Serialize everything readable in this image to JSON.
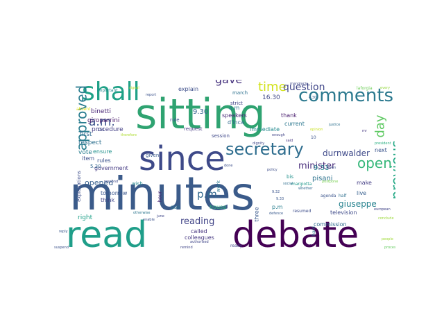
{
  "words": [
    {
      "text": "minutes",
      "color": "#3b5b8a"
    },
    {
      "text": "sitting",
      "color": "#2fa371"
    },
    {
      "text": "read",
      "color": "#1f9e89"
    },
    {
      "text": "debate",
      "color": "#440154"
    },
    {
      "text": "since",
      "color": "#3e4a89"
    },
    {
      "text": "shall",
      "color": "#1fa187"
    },
    {
      "text": "comments",
      "color": "#2a788e"
    },
    {
      "text": "secretary",
      "color": "#2e6d8e"
    },
    {
      "text": "approved",
      "color": "#287c8e"
    },
    {
      "text": "previous",
      "color": "#22a884"
    },
    {
      "text": "open",
      "color": "#35b779"
    },
    {
      "text": "time",
      "color": "#d2e21b"
    },
    {
      "text": "gave",
      "color": "#46327e"
    },
    {
      "text": "a.m.",
      "color": "#3b528b"
    },
    {
      "text": "question",
      "color": "#404688"
    },
    {
      "text": "day",
      "color": "#5ec962"
    },
    {
      "text": "p.m.",
      "color": "#31688e"
    },
    {
      "text": "minister",
      "color": "#472c7a"
    },
    {
      "text": "reading",
      "color": "#414487"
    },
    {
      "text": "durnwalder",
      "color": "#3e4989"
    },
    {
      "text": "opened",
      "color": "#355f8d"
    },
    {
      "text": "giuseppe",
      "color": "#26828e"
    },
    {
      "text": "pisani",
      "color": "#2c728e"
    },
    {
      "text": "9.31",
      "color": "#277f8e"
    },
    {
      "text": "9.30",
      "color": "#33638d"
    },
    {
      "text": "16.30",
      "color": "#3f4788"
    },
    {
      "text": "binetti",
      "color": "#482576"
    },
    {
      "text": "giroparrini",
      "color": "#48186a"
    },
    {
      "text": "procedure",
      "color": "#433e85"
    },
    {
      "text": "first",
      "color": "#31688e"
    },
    {
      "text": "respect",
      "color": "#2d708e"
    },
    {
      "text": "vote",
      "color": "#287d8e"
    },
    {
      "text": "ensure",
      "color": "#20928c"
    },
    {
      "text": "rules",
      "color": "#3b528b"
    },
    {
      "text": "right",
      "color": "#1fa088"
    },
    {
      "text": "called",
      "color": "#46337f"
    },
    {
      "text": "colleagues",
      "color": "#453781"
    },
    {
      "text": "tomorrow",
      "color": "#39568c"
    },
    {
      "text": "think",
      "color": "#404588"
    },
    {
      "text": "ask",
      "color": "#2c738e"
    },
    {
      "text": "explain",
      "color": "#3d4e8a"
    },
    {
      "text": "government",
      "color": "#443a83"
    },
    {
      "text": "item",
      "color": "#3c508b"
    },
    {
      "text": "5.30",
      "color": "#32658e"
    },
    {
      "text": "wish",
      "color": "#25858e"
    },
    {
      "text": "speakers",
      "color": "#482878"
    },
    {
      "text": "thank",
      "color": "#481b6d"
    },
    {
      "text": "current",
      "color": "#2a768e"
    },
    {
      "text": "d'inca",
      "color": "#306a8e"
    },
    {
      "text": "immediate",
      "color": "#23898e"
    },
    {
      "text": "next",
      "color": "#3a548c"
    },
    {
      "text": "make",
      "color": "#433d84"
    },
    {
      "text": "live",
      "color": "#355e8d"
    },
    {
      "text": "television",
      "color": "#3e4a89"
    },
    {
      "text": "commission",
      "color": "#2f6b8e"
    },
    {
      "text": "house",
      "color": "#31b57b"
    },
    {
      "text": "three",
      "color": "#38588c"
    },
    {
      "text": "p.m",
      "color": "#277e8e"
    },
    {
      "text": "a.m",
      "color": "#2b748e"
    },
    {
      "text": "ready",
      "color": "#404387"
    },
    {
      "text": "bis",
      "color": "#21918c"
    },
    {
      "text": "agenda",
      "color": "#3a548c"
    },
    {
      "text": "half",
      "color": "#2e6f8e"
    },
    {
      "text": "resumed",
      "color": "#3d4d8a"
    },
    {
      "text": "march",
      "color": "#2d718e"
    },
    {
      "text": "strict",
      "color": "#414487"
    },
    {
      "text": "session",
      "color": "#3f4889"
    },
    {
      "text": "request",
      "color": "#453882"
    },
    {
      "text": "rule",
      "color": "#3b518b"
    },
    {
      "text": "given",
      "color": "#38598c"
    },
    {
      "text": "work",
      "color": "#2a778e"
    },
    {
      "text": "hour",
      "color": "#481f70"
    },
    {
      "text": "important",
      "color": "#24878e"
    },
    {
      "text": "explanations",
      "color": "#3d4e8a"
    },
    {
      "text": "margiotta",
      "color": "#1f988b"
    },
    {
      "text": "done",
      "color": "#3c4f8a"
    },
    {
      "text": "said",
      "color": "#463480"
    },
    {
      "text": "enough",
      "color": "#414487"
    },
    {
      "text": "dignity",
      "color": "#3f4788"
    },
    {
      "text": "defence",
      "color": "#38598c"
    },
    {
      "text": "whether",
      "color": "#31688e"
    },
    {
      "text": "hard",
      "color": "#2b758e"
    },
    {
      "text": "five",
      "color": "#481467"
    },
    {
      "text": "even",
      "color": "#3b528b"
    },
    {
      "text": "opinion",
      "color": "#c8e020"
    },
    {
      "text": "postpone",
      "color": "#7ad151"
    },
    {
      "text": "laforgia",
      "color": "#6ece58"
    },
    {
      "text": "every",
      "color": "#95d840"
    },
    {
      "text": "otherwise",
      "color": "#2b758e"
    },
    {
      "text": "june",
      "color": "#3f4788"
    },
    {
      "text": "10",
      "color": "#3b528b"
    },
    {
      "text": "151",
      "color": "#3e4a89"
    },
    {
      "text": "therefore",
      "color": "#addc30"
    },
    {
      "text": "justice",
      "color": "#2d708e"
    },
    {
      "text": "9.32",
      "color": "#3a548c"
    },
    {
      "text": "4.30",
      "color": "#33638d"
    },
    {
      "text": "9.33",
      "color": "#39568c"
    },
    {
      "text": "policy",
      "color": "#3d4e8a"
    },
    {
      "text": "social",
      "color": "#2e6e8e"
    },
    {
      "text": "european",
      "color": "#414487"
    },
    {
      "text": "people",
      "color": "#a0da39"
    },
    {
      "text": "mr",
      "color": "#453781"
    },
    {
      "text": "president",
      "color": "#28ae80"
    },
    {
      "text": "respond",
      "color": "#3e4a89"
    },
    {
      "text": "signal",
      "color": "#b5de2b"
    },
    {
      "text": "report",
      "color": "#3b528b"
    },
    {
      "text": "absent",
      "color": "#e5e419"
    },
    {
      "text": "mangiacia",
      "color": "#3e4989"
    },
    {
      "text": "enable",
      "color": "#3b528b"
    },
    {
      "text": "conclude",
      "color": "#9bd93c"
    },
    {
      "text": "process",
      "color": "#63cb5f"
    },
    {
      "text": "remind",
      "color": "#404688"
    },
    {
      "text": "reply",
      "color": "#39568c"
    },
    {
      "text": "suspend",
      "color": "#3b528b"
    },
    {
      "text": "authorised",
      "color": "#404688"
    }
  ]
}
